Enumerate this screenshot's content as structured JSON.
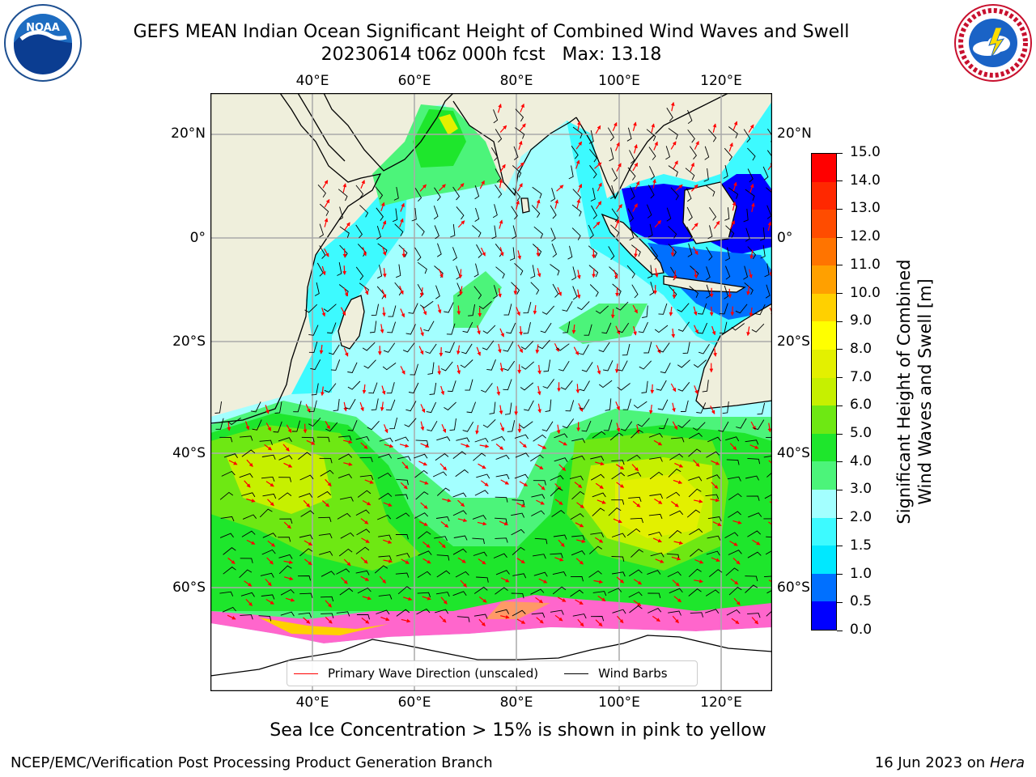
{
  "title_line1": "GEFS MEAN Indian Ocean Significant Height of Combined Wind Waves and Swell",
  "title_line2": "20230614 t06z 000h fcst   Max: 13.18",
  "lon_ticks": [
    "40°E",
    "60°E",
    "80°E",
    "100°E",
    "120°E"
  ],
  "lat_ticks": [
    "20°N",
    "0°",
    "20°S",
    "40°S",
    "60°S"
  ],
  "colorbar": {
    "label_line1": "Significant Height of Combined",
    "label_line2": "Wind Waves and Swell [m]",
    "ticks": [
      "0.0",
      "0.5",
      "1.0",
      "1.5",
      "2.0",
      "3.0",
      "4.0",
      "5.0",
      "6.0",
      "7.0",
      "8.0",
      "9.0",
      "10.0",
      "11.0",
      "12.0",
      "13.0",
      "14.0",
      "15.0"
    ],
    "colors": [
      "#0000ff",
      "#0070ff",
      "#00e8ff",
      "#3dfaff",
      "#a3ffff",
      "#4cf47a",
      "#1ee62c",
      "#6ee813",
      "#c6f000",
      "#e3f000",
      "#ffff00",
      "#ffd000",
      "#ffa000",
      "#ff7400",
      "#ff4c00",
      "#ff2800",
      "#ff0000"
    ]
  },
  "legend": {
    "wave_label": "Primary Wave Direction (unscaled)",
    "wave_color": "#ff0000",
    "barb_label": "Wind Barbs",
    "barb_color": "#000000"
  },
  "caption": "Sea Ice Concentration > 15% is shown in pink to yellow",
  "footer_left": "NCEP/EMC/Verification Post Processing Product Generation Branch",
  "footer_right_date": "16 Jun 2023 on",
  "footer_right_host": "Hera"
}
